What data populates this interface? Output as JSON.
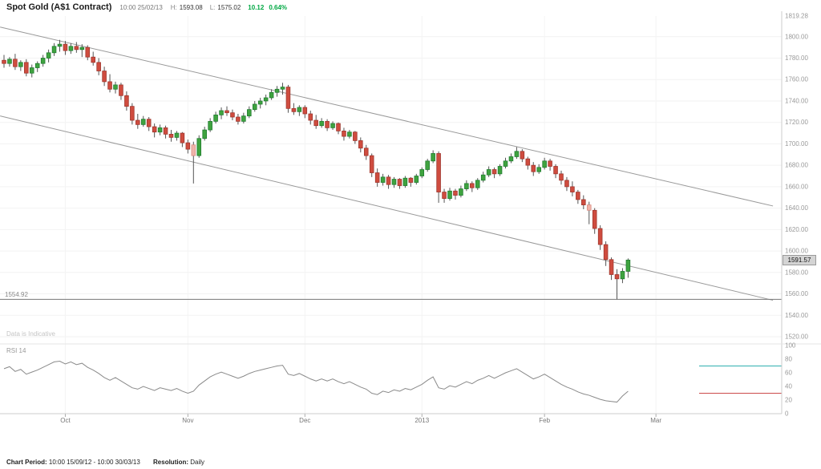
{
  "header": {
    "title": "Spot Gold (A$1 Contract)",
    "timestamp": "10:00 25/02/13",
    "high_label": "H:",
    "high_value": "1593.08",
    "low_label": "L:",
    "low_value": "1575.02",
    "change_value": "10.12",
    "change_pct": "0.64%",
    "change_color": "#00a843"
  },
  "main_chart": {
    "note": "Data is Indicative",
    "support_label": "1554.92",
    "current_price_label": "1591.57"
  },
  "rsi_panel": {
    "label": "RSI 14"
  },
  "footer": {
    "period_label": "Chart Period:",
    "period_value": "10:00 15/09/12 - 10:00 30/03/13",
    "resolution_label": "Resolution:",
    "resolution_value": "Daily"
  },
  "chart_data": {
    "type": "candlestick",
    "title": "Spot Gold (A$1 Contract)",
    "resolution": "Daily",
    "price_axis": {
      "max": 1819.28,
      "min": 1520,
      "ticks": [
        1819.28,
        1800,
        1780,
        1760,
        1740,
        1720,
        1700,
        1680,
        1660,
        1640,
        1620,
        1600,
        1580,
        1560,
        1540,
        1520
      ]
    },
    "x_axis": {
      "ticks": [
        {
          "label": "Oct",
          "i": 11
        },
        {
          "label": "Nov",
          "i": 33
        },
        {
          "label": "Dec",
          "i": 54
        },
        {
          "label": "2013",
          "i": 75
        },
        {
          "label": "Feb",
          "i": 97
        },
        {
          "label": "Mar",
          "i": 117
        }
      ]
    },
    "current_price": 1591.57,
    "support_level": 1554.92,
    "trendlines": [
      {
        "from": {
          "i": -0.7,
          "price": 1809
        },
        "to": {
          "i": 138,
          "price": 1642
        }
      },
      {
        "from": {
          "i": -0.7,
          "price": 1726
        },
        "to": {
          "i": 138,
          "price": 1554
        }
      }
    ],
    "candles": [
      [
        1778,
        1783,
        1771,
        1775
      ],
      [
        1775,
        1781,
        1772,
        1779
      ],
      [
        1779,
        1784,
        1769,
        1772
      ],
      [
        1772,
        1778,
        1768,
        1776
      ],
      [
        1776,
        1779,
        1763,
        1766
      ],
      [
        1766,
        1774,
        1762,
        1771
      ],
      [
        1771,
        1777,
        1767,
        1775
      ],
      [
        1775,
        1783,
        1772,
        1780
      ],
      [
        1780,
        1788,
        1776,
        1785
      ],
      [
        1785,
        1794,
        1782,
        1791
      ],
      [
        1791,
        1797,
        1786,
        1793
      ],
      [
        1793,
        1796,
        1783,
        1787
      ],
      [
        1787,
        1794,
        1784,
        1791
      ],
      [
        1791,
        1795,
        1785,
        1788
      ],
      [
        1788,
        1793,
        1781,
        1790
      ],
      [
        1790,
        1792,
        1778,
        1781
      ],
      [
        1781,
        1786,
        1773,
        1776
      ],
      [
        1776,
        1780,
        1764,
        1768
      ],
      [
        1768,
        1772,
        1754,
        1758
      ],
      [
        1758,
        1765,
        1748,
        1751
      ],
      [
        1751,
        1758,
        1747,
        1755
      ],
      [
        1755,
        1757,
        1741,
        1745
      ],
      [
        1745,
        1749,
        1731,
        1735
      ],
      [
        1735,
        1738,
        1718,
        1722
      ],
      [
        1722,
        1728,
        1714,
        1718
      ],
      [
        1718,
        1726,
        1716,
        1723
      ],
      [
        1723,
        1725,
        1712,
        1716
      ],
      [
        1716,
        1719,
        1706,
        1711
      ],
      [
        1711,
        1718,
        1708,
        1715
      ],
      [
        1715,
        1717,
        1705,
        1709
      ],
      [
        1709,
        1713,
        1702,
        1706
      ],
      [
        1706,
        1712,
        1703,
        1710
      ],
      [
        1710,
        1711,
        1697,
        1701
      ],
      [
        1701,
        1704,
        1691,
        1695
      ],
      [
        1699,
        1702,
        1663,
        1689
      ],
      [
        1689,
        1708,
        1687,
        1705
      ],
      [
        1705,
        1716,
        1703,
        1713
      ],
      [
        1713,
        1724,
        1711,
        1721
      ],
      [
        1721,
        1730,
        1719,
        1727
      ],
      [
        1727,
        1734,
        1723,
        1731
      ],
      [
        1731,
        1735,
        1726,
        1729
      ],
      [
        1729,
        1732,
        1722,
        1725
      ],
      [
        1725,
        1728,
        1718,
        1721
      ],
      [
        1721,
        1729,
        1719,
        1726
      ],
      [
        1726,
        1735,
        1724,
        1732
      ],
      [
        1732,
        1740,
        1730,
        1737
      ],
      [
        1737,
        1743,
        1733,
        1740
      ],
      [
        1740,
        1746,
        1736,
        1743
      ],
      [
        1743,
        1751,
        1741,
        1748
      ],
      [
        1748,
        1754,
        1744,
        1751
      ],
      [
        1751,
        1757,
        1746,
        1753
      ],
      [
        1753,
        1755,
        1729,
        1733
      ],
      [
        1733,
        1738,
        1727,
        1730
      ],
      [
        1730,
        1736,
        1726,
        1734
      ],
      [
        1734,
        1736,
        1724,
        1728
      ],
      [
        1728,
        1731,
        1718,
        1722
      ],
      [
        1722,
        1727,
        1714,
        1717
      ],
      [
        1717,
        1724,
        1715,
        1721
      ],
      [
        1721,
        1723,
        1712,
        1715
      ],
      [
        1715,
        1721,
        1713,
        1719
      ],
      [
        1719,
        1720,
        1709,
        1712
      ],
      [
        1712,
        1715,
        1703,
        1707
      ],
      [
        1707,
        1713,
        1705,
        1711
      ],
      [
        1711,
        1712,
        1700,
        1703
      ],
      [
        1703,
        1706,
        1692,
        1696
      ],
      [
        1696,
        1699,
        1685,
        1689
      ],
      [
        1689,
        1691,
        1669,
        1673
      ],
      [
        1673,
        1677,
        1660,
        1664
      ],
      [
        1664,
        1672,
        1661,
        1669
      ],
      [
        1669,
        1671,
        1658,
        1662
      ],
      [
        1662,
        1669,
        1659,
        1667
      ],
      [
        1667,
        1668,
        1658,
        1661
      ],
      [
        1661,
        1670,
        1659,
        1668
      ],
      [
        1668,
        1669,
        1660,
        1664
      ],
      [
        1664,
        1672,
        1662,
        1670
      ],
      [
        1670,
        1678,
        1668,
        1676
      ],
      [
        1676,
        1686,
        1674,
        1684
      ],
      [
        1684,
        1694,
        1682,
        1691
      ],
      [
        1691,
        1693,
        1645,
        1655
      ],
      [
        1655,
        1658,
        1645,
        1649
      ],
      [
        1649,
        1659,
        1647,
        1656
      ],
      [
        1656,
        1658,
        1648,
        1652
      ],
      [
        1652,
        1661,
        1650,
        1658
      ],
      [
        1658,
        1666,
        1656,
        1663
      ],
      [
        1663,
        1665,
        1655,
        1659
      ],
      [
        1659,
        1668,
        1657,
        1666
      ],
      [
        1666,
        1674,
        1664,
        1671
      ],
      [
        1671,
        1679,
        1669,
        1676
      ],
      [
        1676,
        1678,
        1668,
        1672
      ],
      [
        1672,
        1681,
        1670,
        1679
      ],
      [
        1679,
        1687,
        1677,
        1684
      ],
      [
        1684,
        1691,
        1682,
        1688
      ],
      [
        1688,
        1697,
        1686,
        1693
      ],
      [
        1693,
        1695,
        1683,
        1686
      ],
      [
        1686,
        1688,
        1676,
        1680
      ],
      [
        1680,
        1683,
        1670,
        1674
      ],
      [
        1674,
        1681,
        1672,
        1678
      ],
      [
        1678,
        1687,
        1676,
        1684
      ],
      [
        1684,
        1686,
        1675,
        1679
      ],
      [
        1679,
        1681,
        1668,
        1672
      ],
      [
        1672,
        1675,
        1662,
        1666
      ],
      [
        1666,
        1669,
        1656,
        1660
      ],
      [
        1660,
        1665,
        1651,
        1655
      ],
      [
        1655,
        1657,
        1644,
        1648
      ],
      [
        1648,
        1652,
        1639,
        1643
      ],
      [
        1643,
        1646,
        1625,
        1638
      ],
      [
        1638,
        1640,
        1616,
        1621
      ],
      [
        1621,
        1624,
        1601,
        1606
      ],
      [
        1606,
        1609,
        1586,
        1592
      ],
      [
        1592,
        1594,
        1573,
        1578
      ],
      [
        1578,
        1583,
        1555,
        1574
      ],
      [
        1574,
        1584,
        1570,
        1581
      ],
      [
        1581,
        1593.08,
        1575.02,
        1591.57
      ]
    ],
    "pale_candles": [
      34,
      105
    ],
    "rsi": {
      "period": 14,
      "overbought": 70,
      "oversold": 30,
      "range": [
        0,
        100
      ],
      "ticks": [
        100,
        80,
        60,
        40,
        20,
        0
      ],
      "values": [
        66,
        69,
        62,
        65,
        58,
        61,
        64,
        68,
        72,
        76,
        77,
        73,
        76,
        72,
        74,
        68,
        64,
        59,
        53,
        49,
        53,
        48,
        43,
        38,
        36,
        40,
        37,
        34,
        38,
        36,
        34,
        37,
        33,
        30,
        33,
        42,
        48,
        54,
        58,
        61,
        58,
        55,
        52,
        55,
        59,
        62,
        64,
        66,
        68,
        70,
        71,
        58,
        56,
        59,
        55,
        51,
        48,
        51,
        48,
        51,
        47,
        44,
        47,
        43,
        39,
        36,
        30,
        28,
        33,
        31,
        35,
        33,
        37,
        35,
        39,
        43,
        49,
        54,
        38,
        36,
        41,
        39,
        43,
        47,
        44,
        49,
        52,
        56,
        52,
        56,
        60,
        63,
        66,
        61,
        56,
        51,
        54,
        58,
        53,
        48,
        43,
        39,
        36,
        32,
        29,
        27,
        24,
        21,
        19,
        18,
        17,
        26,
        33
      ]
    },
    "colors": {
      "up": "#3fa33f",
      "up_border": "#1e7a2e",
      "down": "#cf4c3f",
      "down_border": "#9c352c",
      "pale": "#f0b4aa",
      "pale_border": "#d98b80",
      "wick": "#555555",
      "trendline": "#999999",
      "support": "#777777",
      "rsi_line": "#8a8a8a",
      "overbought_line": "#2fb0b0",
      "oversold_line": "#cc4b4b"
    }
  }
}
